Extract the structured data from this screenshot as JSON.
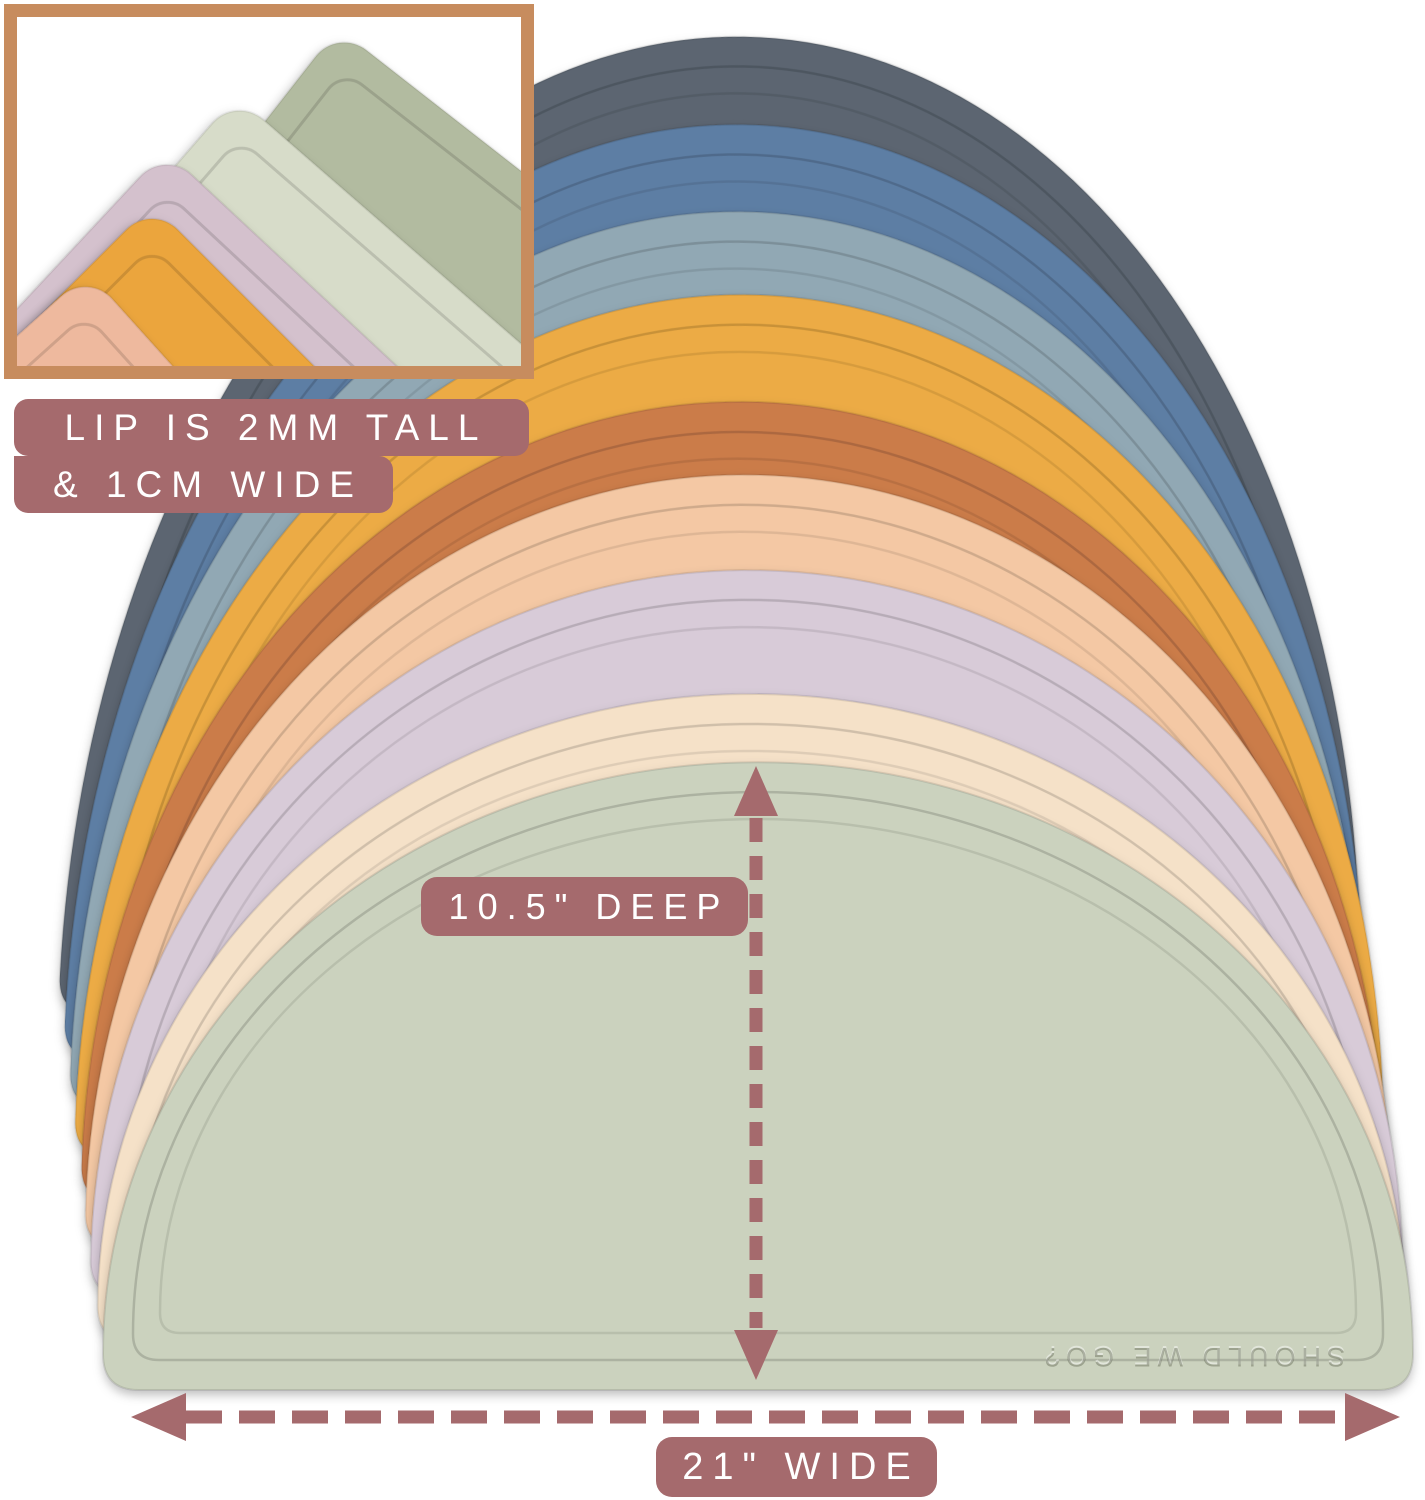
{
  "annotations": {
    "lip_label_line1": "LIP IS 2MM TALL",
    "lip_label_line2": "& 1CM WIDE",
    "depth_label": "10.5\" DEEP",
    "width_label": "21\" WIDE",
    "label_bg": "#a56a6d",
    "label_text_color": "#ffffff",
    "arrow_color": "#a56a6d"
  },
  "product": {
    "embossed_text": "SHOULD WE GO?",
    "mats": [
      {
        "name": "charcoal",
        "color": "#5b6571"
      },
      {
        "name": "steel-blue",
        "color": "#5d7ea4"
      },
      {
        "name": "dusty-blue",
        "color": "#91a8b4"
      },
      {
        "name": "mustard",
        "color": "#ecab44"
      },
      {
        "name": "terracotta",
        "color": "#cb7b4a"
      },
      {
        "name": "peach",
        "color": "#f4c8a4"
      },
      {
        "name": "lilac",
        "color": "#d8cbd8"
      },
      {
        "name": "cream",
        "color": "#f5e1c8"
      },
      {
        "name": "sage",
        "color": "#cbd2be"
      }
    ],
    "inset": {
      "border_color": "#c78c5e",
      "background": "#ffffff",
      "mats": [
        {
          "name": "sage",
          "color": "#b2bba0"
        },
        {
          "name": "mint",
          "color": "#d7dcc9"
        },
        {
          "name": "lilac",
          "color": "#d4c1cd"
        },
        {
          "name": "mustard",
          "color": "#eba53d"
        },
        {
          "name": "sliver-orange",
          "color": "#d79057"
        },
        {
          "name": "sliver-lilac",
          "color": "#cdc3ce"
        },
        {
          "name": "peach",
          "color": "#eeb99e"
        }
      ]
    }
  }
}
